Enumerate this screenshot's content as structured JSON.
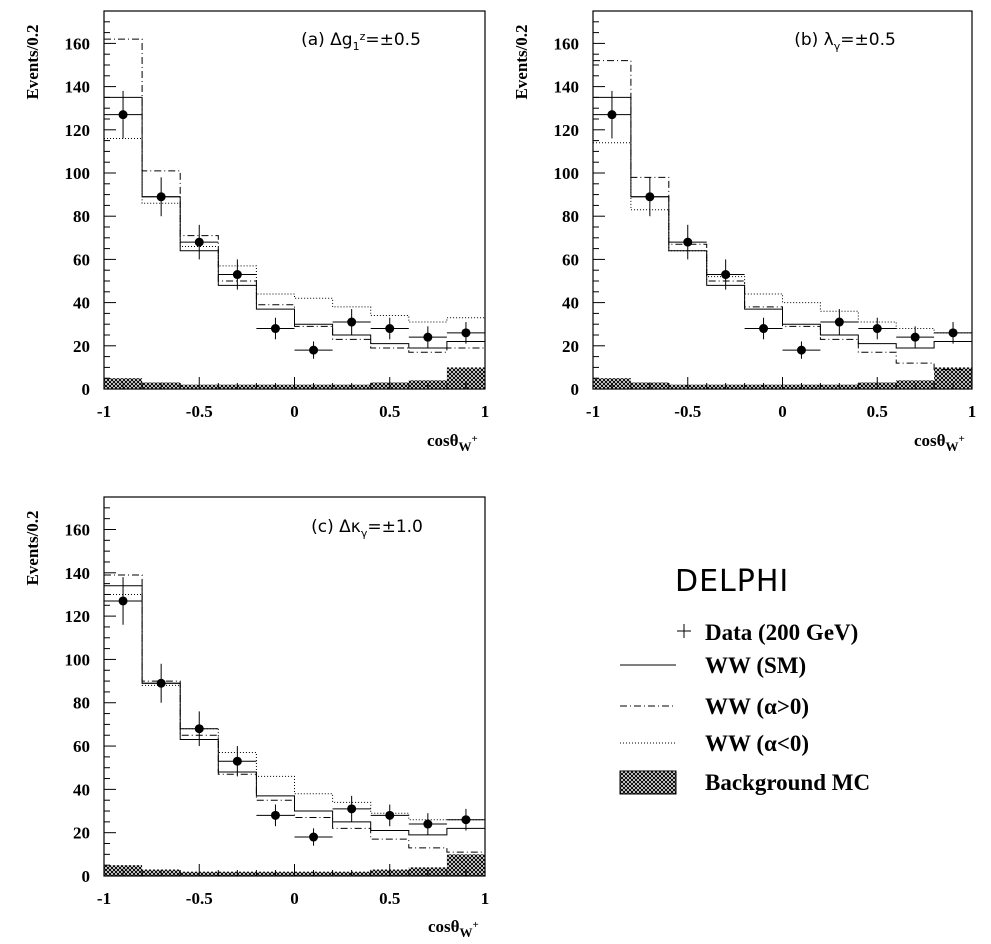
{
  "figure": {
    "brand": "DELPHI",
    "legend": [
      {
        "key": "data",
        "label": "Data (200 GeV)",
        "style": "marker"
      },
      {
        "key": "sm",
        "label": "WW (SM)",
        "style": "solid"
      },
      {
        "key": "pos",
        "label": "WW (α>0)",
        "style": "dashdot"
      },
      {
        "key": "neg",
        "label": "WW (α<0)",
        "style": "dotted"
      },
      {
        "key": "bkg",
        "label": "Background MC",
        "style": "hatched"
      }
    ]
  },
  "chart_data": [
    {
      "type": "histogram",
      "title": "(a) Δg₁ᶻ = ± 0.5",
      "ylabel": "Events/0.2",
      "xlabel": "cosθW+",
      "xlim": [
        -1,
        1
      ],
      "ylim": [
        0,
        175
      ],
      "xticks": [
        "-1",
        "-0.5",
        "0",
        "0.5",
        "1"
      ],
      "yticks": [
        "0",
        "20",
        "40",
        "60",
        "80",
        "100",
        "120",
        "140",
        "160"
      ],
      "bin_edges": [
        -1.0,
        -0.8,
        -0.6,
        -0.4,
        -0.2,
        0.0,
        0.2,
        0.4,
        0.6,
        0.8,
        1.0
      ],
      "data": {
        "x": [
          -0.9,
          -0.7,
          -0.5,
          -0.3,
          -0.1,
          0.1,
          0.3,
          0.5,
          0.7,
          0.9
        ],
        "y": [
          127,
          89,
          68,
          53,
          28,
          18,
          31,
          28,
          24,
          26
        ],
        "err": [
          11,
          9,
          8,
          7,
          5,
          4,
          6,
          5,
          5,
          5
        ]
      },
      "series": [
        {
          "name": "WW (SM)",
          "style": "solid",
          "values": [
            135,
            89,
            64,
            48,
            37,
            30,
            25,
            21,
            19,
            22
          ]
        },
        {
          "name": "WW (α>0)",
          "style": "dashdot",
          "values": [
            162,
            101,
            71,
            50,
            39,
            29,
            23,
            19,
            17,
            19
          ]
        },
        {
          "name": "WW (α<0)",
          "style": "dotted",
          "values": [
            116,
            86,
            66,
            57,
            44,
            42,
            38,
            34,
            31,
            33
          ]
        },
        {
          "name": "Background MC",
          "style": "hatched",
          "values": [
            5,
            3,
            2,
            2,
            2,
            2,
            2,
            3,
            4,
            10
          ]
        }
      ]
    },
    {
      "type": "histogram",
      "title": "(b) λγ = ± 0.5",
      "ylabel": "Events/0.2",
      "xlabel": "cosθW+",
      "xlim": [
        -1,
        1
      ],
      "ylim": [
        0,
        175
      ],
      "xticks": [
        "-1",
        "-0.5",
        "0",
        "0.5",
        "1"
      ],
      "yticks": [
        "0",
        "20",
        "40",
        "60",
        "80",
        "100",
        "120",
        "140",
        "160"
      ],
      "bin_edges": [
        -1.0,
        -0.8,
        -0.6,
        -0.4,
        -0.2,
        0.0,
        0.2,
        0.4,
        0.6,
        0.8,
        1.0
      ],
      "data": {
        "x": [
          -0.9,
          -0.7,
          -0.5,
          -0.3,
          -0.1,
          0.1,
          0.3,
          0.5,
          0.7,
          0.9
        ],
        "y": [
          127,
          89,
          68,
          53,
          28,
          18,
          31,
          28,
          24,
          26
        ],
        "err": [
          11,
          9,
          8,
          7,
          5,
          4,
          6,
          5,
          5,
          5
        ]
      },
      "series": [
        {
          "name": "WW (SM)",
          "style": "solid",
          "values": [
            135,
            89,
            64,
            48,
            37,
            30,
            25,
            21,
            19,
            22
          ]
        },
        {
          "name": "WW (α>0)",
          "style": "dashdot",
          "values": [
            152,
            98,
            67,
            50,
            38,
            29,
            23,
            17,
            12,
            9
          ]
        },
        {
          "name": "WW (α<0)",
          "style": "dotted",
          "values": [
            114,
            83,
            64,
            52,
            44,
            40,
            36,
            31,
            28,
            26
          ]
        },
        {
          "name": "Background MC",
          "style": "hatched",
          "values": [
            5,
            3,
            2,
            2,
            2,
            2,
            2,
            3,
            4,
            10
          ]
        }
      ]
    },
    {
      "type": "histogram",
      "title": "(c) Δκγ = ± 1.0",
      "ylabel": "Events/0.2",
      "xlabel": "cosθW+",
      "xlim": [
        -1,
        1
      ],
      "ylim": [
        0,
        175
      ],
      "xticks": [
        "-1",
        "-0.5",
        "0",
        "0.5",
        "1"
      ],
      "yticks": [
        "0",
        "20",
        "40",
        "60",
        "80",
        "100",
        "120",
        "140",
        "160"
      ],
      "bin_edges": [
        -1.0,
        -0.8,
        -0.6,
        -0.4,
        -0.2,
        0.0,
        0.2,
        0.4,
        0.6,
        0.8,
        1.0
      ],
      "data": {
        "x": [
          -0.9,
          -0.7,
          -0.5,
          -0.3,
          -0.1,
          0.1,
          0.3,
          0.5,
          0.7,
          0.9
        ],
        "y": [
          127,
          89,
          68,
          53,
          28,
          18,
          31,
          28,
          24,
          26
        ],
        "err": [
          11,
          9,
          8,
          7,
          5,
          4,
          6,
          5,
          5,
          5
        ]
      },
      "series": [
        {
          "name": "WW (SM)",
          "style": "solid",
          "values": [
            134,
            89,
            63,
            48,
            37,
            30,
            25,
            21,
            19,
            22
          ]
        },
        {
          "name": "WW (α>0)",
          "style": "dashdot",
          "values": [
            139,
            90,
            65,
            47,
            35,
            27,
            22,
            17,
            13,
            11
          ]
        },
        {
          "name": "WW (α<0)",
          "style": "dotted",
          "values": [
            130,
            88,
            68,
            57,
            46,
            38,
            34,
            29,
            26,
            26
          ]
        },
        {
          "name": "Background MC",
          "style": "hatched",
          "values": [
            5,
            3,
            2,
            2,
            2,
            2,
            2,
            3,
            4,
            10
          ]
        }
      ]
    }
  ]
}
